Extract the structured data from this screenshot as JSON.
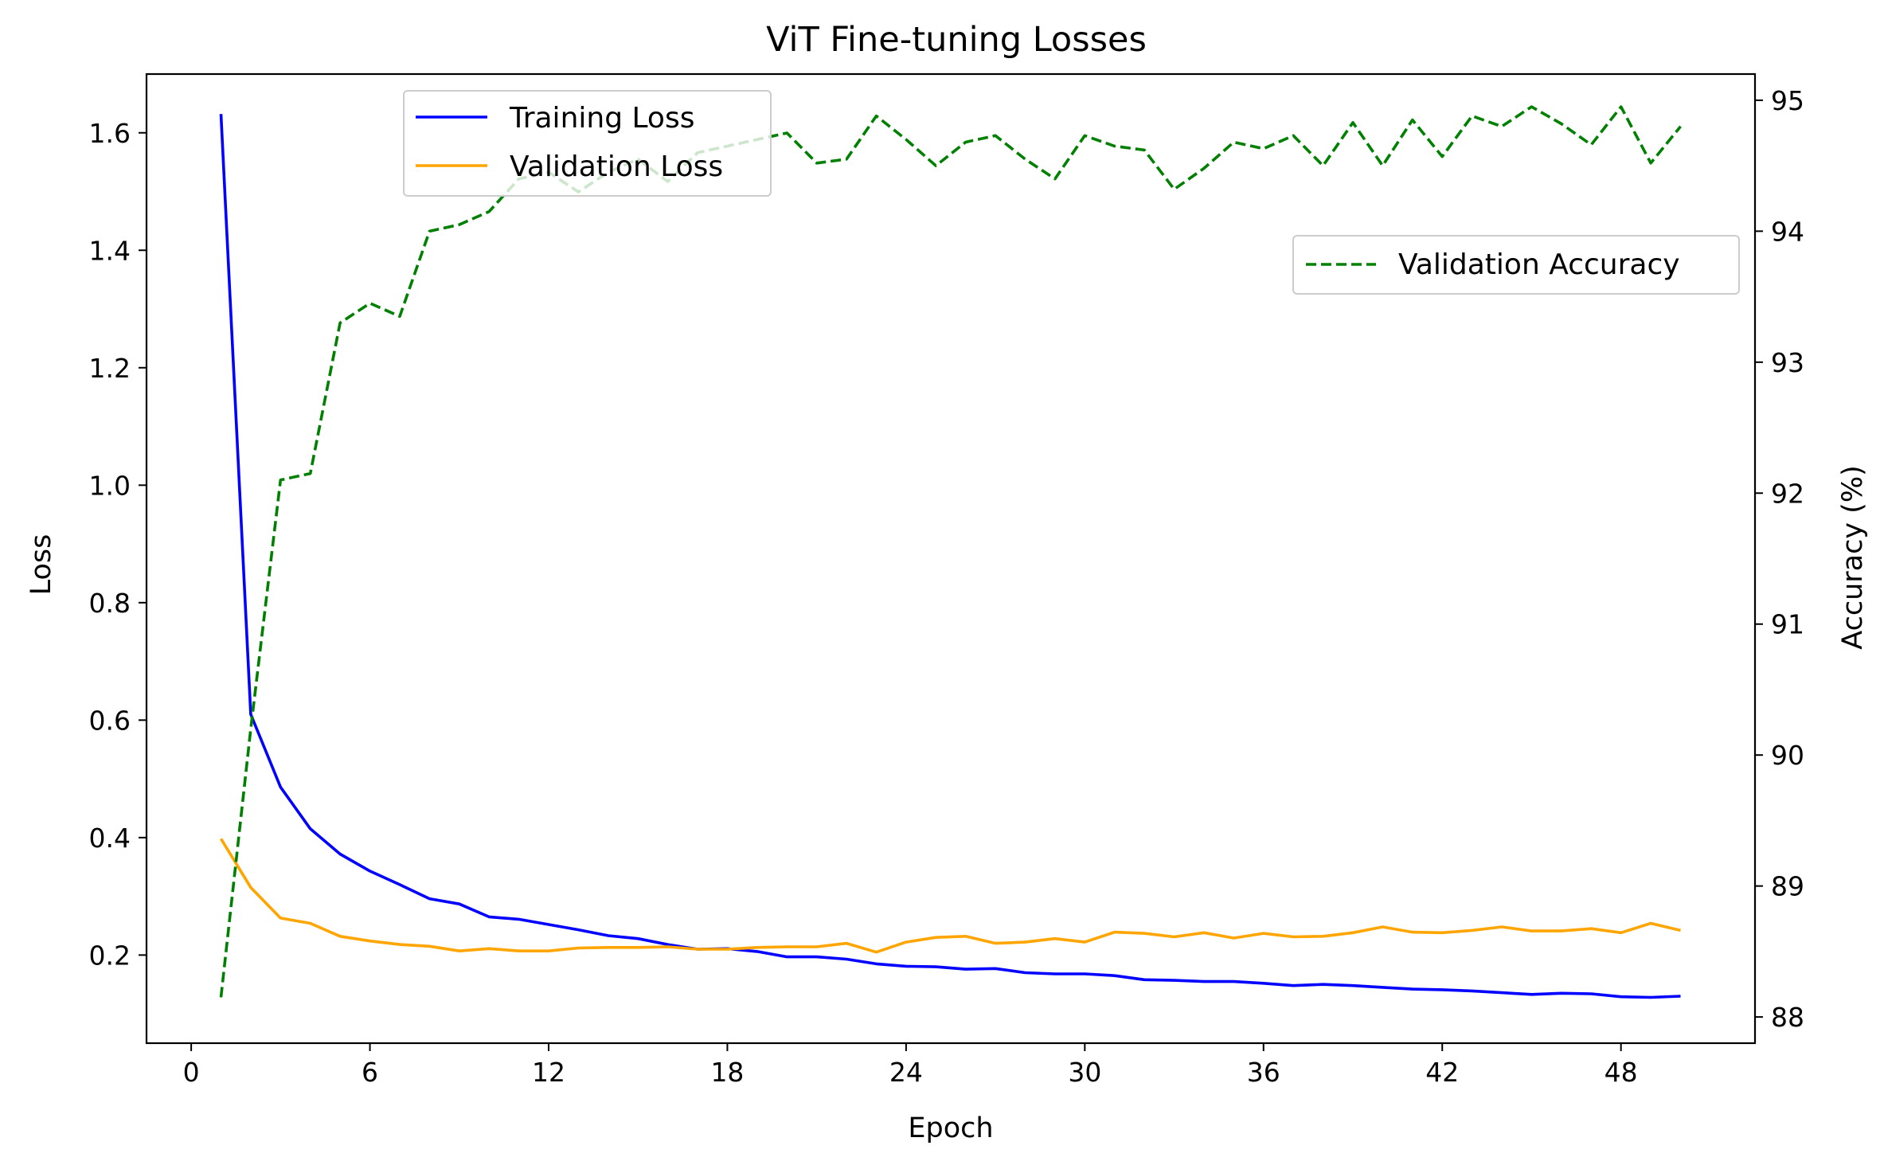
{
  "chart_data": {
    "type": "line",
    "title": "ViT Fine-tuning Losses",
    "xlabel": "Epoch",
    "ylabel": "Loss",
    "y2label": "Accuracy (%)",
    "xlim": [
      -1.5,
      52.5
    ],
    "ylim": [
      0.05,
      1.7
    ],
    "y2lim": [
      87.8,
      95.2
    ],
    "x_ticks": [
      0,
      6,
      12,
      18,
      24,
      30,
      36,
      42,
      48
    ],
    "y_ticks": [
      0.2,
      0.4,
      0.6,
      0.8,
      1.0,
      1.2,
      1.4,
      1.6
    ],
    "y2_ticks": [
      88,
      89,
      90,
      91,
      92,
      93,
      94,
      95
    ],
    "grid": false,
    "x": [
      1,
      2,
      3,
      4,
      5,
      6,
      7,
      8,
      9,
      10,
      11,
      12,
      13,
      14,
      15,
      16,
      17,
      18,
      19,
      20,
      21,
      22,
      23,
      24,
      25,
      26,
      27,
      28,
      29,
      30,
      31,
      32,
      33,
      34,
      35,
      36,
      37,
      38,
      39,
      40,
      41,
      42,
      43,
      44,
      45,
      46,
      47,
      48,
      49,
      50
    ],
    "series": [
      {
        "name": "Training Loss",
        "axis": "left",
        "color": "#0000ff",
        "linestyle": "solid",
        "values": [
          1.632,
          0.61,
          0.486,
          0.415,
          0.372,
          0.343,
          0.32,
          0.296,
          0.287,
          0.265,
          0.261,
          0.252,
          0.243,
          0.233,
          0.228,
          0.218,
          0.21,
          0.211,
          0.206,
          0.197,
          0.197,
          0.193,
          0.185,
          0.181,
          0.18,
          0.176,
          0.177,
          0.17,
          0.168,
          0.168,
          0.165,
          0.158,
          0.157,
          0.155,
          0.155,
          0.152,
          0.148,
          0.15,
          0.148,
          0.145,
          0.142,
          0.141,
          0.139,
          0.136,
          0.133,
          0.135,
          0.134,
          0.129,
          0.128,
          0.13
        ]
      },
      {
        "name": "Validation Loss",
        "axis": "left",
        "color": "#ffa500",
        "linestyle": "solid",
        "values": [
          0.398,
          0.315,
          0.263,
          0.254,
          0.232,
          0.224,
          0.218,
          0.215,
          0.207,
          0.211,
          0.207,
          0.207,
          0.212,
          0.213,
          0.213,
          0.214,
          0.21,
          0.21,
          0.213,
          0.214,
          0.214,
          0.22,
          0.205,
          0.222,
          0.23,
          0.232,
          0.22,
          0.222,
          0.228,
          0.222,
          0.239,
          0.237,
          0.231,
          0.238,
          0.229,
          0.237,
          0.231,
          0.232,
          0.238,
          0.248,
          0.239,
          0.238,
          0.242,
          0.248,
          0.241,
          0.241,
          0.245,
          0.238,
          0.254,
          0.242
        ]
      },
      {
        "name": "Validation Accuracy",
        "axis": "right",
        "color": "#008000",
        "linestyle": "dashed",
        "values": [
          88.15,
          90.2,
          92.1,
          92.15,
          93.3,
          93.45,
          93.35,
          94.0,
          94.05,
          94.15,
          94.4,
          94.45,
          94.3,
          94.45,
          94.55,
          94.38,
          94.6,
          94.65,
          94.7,
          94.75,
          94.52,
          94.55,
          94.88,
          94.7,
          94.5,
          94.68,
          94.73,
          94.55,
          94.4,
          94.73,
          94.65,
          94.62,
          94.32,
          94.48,
          94.68,
          94.63,
          94.73,
          94.5,
          94.83,
          94.5,
          94.85,
          94.57,
          94.88,
          94.8,
          94.95,
          94.82,
          94.66,
          94.95,
          94.52,
          94.8
        ]
      }
    ],
    "legends": [
      {
        "placement": "upper-center",
        "entries": [
          "Training Loss",
          "Validation Loss"
        ]
      },
      {
        "placement": "upper-right",
        "entries": [
          "Validation Accuracy"
        ]
      }
    ]
  }
}
